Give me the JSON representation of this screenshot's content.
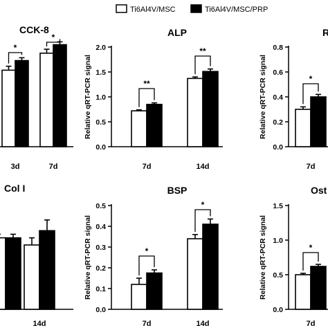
{
  "legend": {
    "items": [
      {
        "label": "Ti6Al4V/MSC",
        "fill": "#ffffff"
      },
      {
        "label": "Ti6Al4V/MSC/PRP",
        "fill": "#000000"
      }
    ]
  },
  "chart_data": [
    {
      "type": "bar",
      "title": "CCK-8",
      "categories": [
        "3d",
        "7d"
      ],
      "series": [
        {
          "name": "Ti6Al4V/MSC",
          "values": [
            1.35,
            1.65
          ],
          "errors": [
            0.07,
            0.07
          ]
        },
        {
          "name": "Ti6Al4V/MSC/PRP",
          "values": [
            1.52,
            1.8
          ],
          "errors": [
            0.05,
            0.05
          ]
        }
      ],
      "significance": [
        "*",
        "*"
      ],
      "ylabel": "",
      "yticks": [],
      "ylim": [
        0,
        2.1
      ]
    },
    {
      "type": "bar",
      "title": "ALP",
      "categories": [
        "7d",
        "14d"
      ],
      "series": [
        {
          "name": "Ti6Al4V/MSC",
          "values": [
            0.72,
            1.37
          ],
          "errors": [
            0.02,
            0.03
          ]
        },
        {
          "name": "Ti6Al4V/MSC/PRP",
          "values": [
            0.85,
            1.51
          ],
          "errors": [
            0.03,
            0.05
          ]
        }
      ],
      "significance": [
        "**",
        "**"
      ],
      "ylabel": "Relative qRT-PCR signal",
      "yticks": [
        "0.0",
        "0.5",
        "1.0",
        "1.5",
        "2.0"
      ],
      "ylim": [
        0,
        2.0
      ]
    },
    {
      "type": "bar",
      "title": "R",
      "categories": [
        "7d"
      ],
      "series": [
        {
          "name": "Ti6Al4V/MSC",
          "values": [
            0.3
          ],
          "errors": [
            0.02
          ]
        },
        {
          "name": "Ti6Al4V/MSC/PRP",
          "values": [
            0.4
          ],
          "errors": [
            0.02
          ]
        }
      ],
      "significance": [
        "*"
      ],
      "ylabel": "Relative qRT-PCR signal",
      "yticks": [
        "0.0",
        "0.2",
        "0.4",
        "0.6",
        "0.8"
      ],
      "ylim": [
        0,
        0.8
      ]
    },
    {
      "type": "bar",
      "title": "Col I",
      "categories": [
        "",
        "14d"
      ],
      "series": [
        {
          "name": "Ti6Al4V/MSC",
          "values": [
            1.0,
            0.9
          ],
          "errors": [
            0.05,
            0.1
          ]
        },
        {
          "name": "Ti6Al4V/MSC/PRP",
          "values": [
            1.0,
            1.1
          ],
          "errors": [
            0.05,
            0.15
          ]
        }
      ],
      "significance": [
        "",
        ""
      ],
      "ylabel": "",
      "yticks": [],
      "ylim": [
        0,
        1.5
      ]
    },
    {
      "type": "bar",
      "title": "BSP",
      "categories": [
        "7d",
        "14d"
      ],
      "series": [
        {
          "name": "Ti6Al4V/MSC",
          "values": [
            0.12,
            0.34
          ],
          "errors": [
            0.03,
            0.02
          ]
        },
        {
          "name": "Ti6Al4V/MSC/PRP",
          "values": [
            0.175,
            0.41
          ],
          "errors": [
            0.015,
            0.025
          ]
        }
      ],
      "significance": [
        "*",
        "*"
      ],
      "ylabel": "Relative qRT-PCR signal",
      "yticks": [
        "0.0",
        "0.1",
        "0.2",
        "0.3",
        "0.4",
        "0.5"
      ],
      "ylim": [
        0,
        0.5
      ]
    },
    {
      "type": "bar",
      "title": "Ost",
      "categories": [
        "7d"
      ],
      "series": [
        {
          "name": "Ti6Al4V/MSC",
          "values": [
            0.5
          ],
          "errors": [
            0.02
          ]
        },
        {
          "name": "Ti6Al4V/MSC/PRP",
          "values": [
            0.62
          ],
          "errors": [
            0.03
          ]
        }
      ],
      "significance": [
        "*"
      ],
      "ylabel": "Relative qRT-PCR signal",
      "yticks": [
        "0.0",
        "0.5",
        "1.0",
        "1.5"
      ],
      "ylim": [
        0,
        1.5
      ]
    }
  ]
}
